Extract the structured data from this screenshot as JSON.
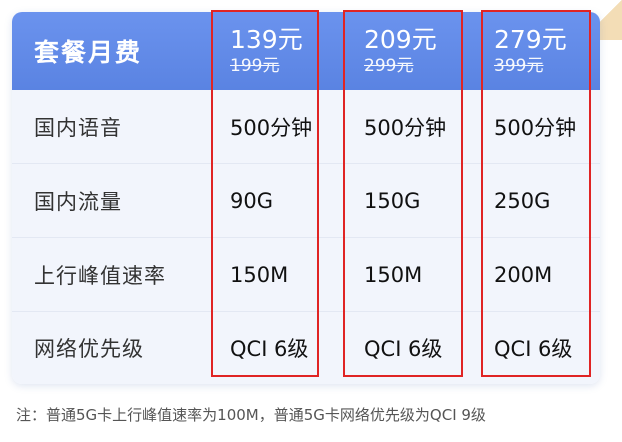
{
  "table": {
    "header": {
      "label": "套餐月费",
      "plans": [
        {
          "price": "139元",
          "original": "199元"
        },
        {
          "price": "209元",
          "original": "299元"
        },
        {
          "price": "279元",
          "original": "399元"
        }
      ]
    },
    "rows": [
      {
        "label": "国内语音",
        "values": [
          "500分钟",
          "500分钟",
          "500分钟"
        ]
      },
      {
        "label": "国内流量",
        "values": [
          "90G",
          "150G",
          "250G"
        ]
      },
      {
        "label": "上行峰值速率",
        "values": [
          "150M",
          "150M",
          "200M"
        ]
      },
      {
        "label": "网络优先级",
        "values": [
          "QCI 6级",
          "QCI 6级",
          "QCI 6级"
        ]
      }
    ]
  },
  "footnote": "注：普通5G卡上行峰值速率为100M，普通5G卡网络优先级为QCI 9级",
  "colors": {
    "header_bg": "#6b93ee",
    "row_bg": "#f2f5fc",
    "highlight_border": "#e02424"
  }
}
